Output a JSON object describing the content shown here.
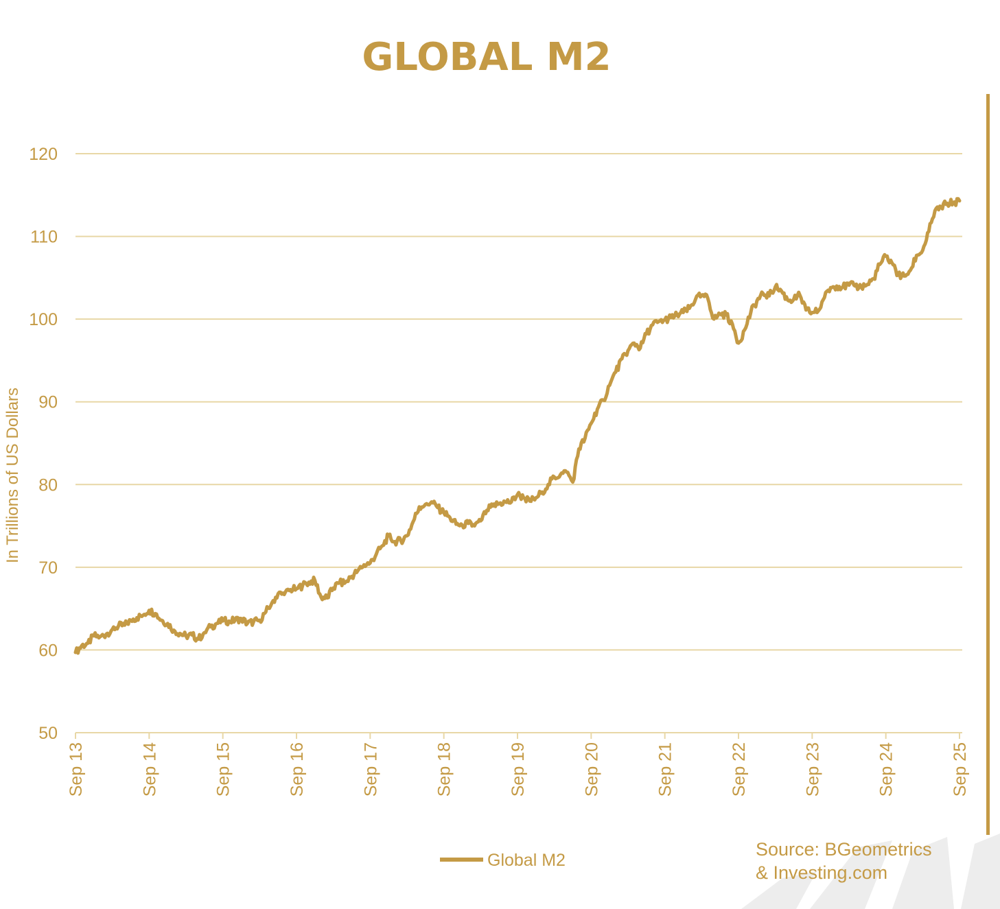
{
  "colors": {
    "accent": "#C49A45",
    "grid": "#E8D7A6",
    "text": "#C49A45",
    "watermark": "#EDEDED"
  },
  "chart_data": {
    "type": "line",
    "title": "GLOBAL M2",
    "ylabel": "In Trillions of US Dollars",
    "xlabel": "",
    "ylim": [
      50,
      120
    ],
    "yticks": [
      50,
      60,
      70,
      80,
      90,
      100,
      110,
      120
    ],
    "grid": true,
    "legend": "bottom-center",
    "xtick_labels": [
      "Sep 13",
      "Sep 14",
      "Sep 15",
      "Sep 16",
      "Sep 17",
      "Sep 18",
      "Sep 19",
      "Sep 20",
      "Sep 21",
      "Sep 22",
      "Sep 23",
      "Sep 24",
      "Sep 25"
    ],
    "series": [
      {
        "name": "Global M2",
        "x": [
          "2013-09",
          "2013-10",
          "2013-11",
          "2013-12",
          "2014-01",
          "2014-02",
          "2014-03",
          "2014-04",
          "2014-05",
          "2014-06",
          "2014-07",
          "2014-08",
          "2014-09",
          "2014-10",
          "2014-11",
          "2014-12",
          "2015-01",
          "2015-02",
          "2015-03",
          "2015-04",
          "2015-05",
          "2015-06",
          "2015-07",
          "2015-08",
          "2015-09",
          "2015-10",
          "2015-11",
          "2015-12",
          "2016-01",
          "2016-02",
          "2016-03",
          "2016-04",
          "2016-05",
          "2016-06",
          "2016-07",
          "2016-08",
          "2016-09",
          "2016-10",
          "2016-11",
          "2016-12",
          "2017-01",
          "2017-02",
          "2017-03",
          "2017-04",
          "2017-05",
          "2017-06",
          "2017-07",
          "2017-08",
          "2017-09",
          "2017-10",
          "2017-11",
          "2017-12",
          "2018-01",
          "2018-02",
          "2018-03",
          "2018-04",
          "2018-05",
          "2018-06",
          "2018-07",
          "2018-08",
          "2018-09",
          "2018-10",
          "2018-11",
          "2018-12",
          "2019-01",
          "2019-02",
          "2019-03",
          "2019-04",
          "2019-05",
          "2019-06",
          "2019-07",
          "2019-08",
          "2019-09",
          "2019-10",
          "2019-11",
          "2019-12",
          "2020-01",
          "2020-02",
          "2020-03",
          "2020-04",
          "2020-05",
          "2020-06",
          "2020-07",
          "2020-08",
          "2020-09",
          "2020-10",
          "2020-11",
          "2020-12",
          "2021-01",
          "2021-02",
          "2021-03",
          "2021-04",
          "2021-05",
          "2021-06",
          "2021-07",
          "2021-08",
          "2021-09",
          "2021-10",
          "2021-11",
          "2021-12",
          "2022-01",
          "2022-02",
          "2022-03",
          "2022-04",
          "2022-05",
          "2022-06",
          "2022-07",
          "2022-08",
          "2022-09",
          "2022-10",
          "2022-11",
          "2022-12",
          "2023-01",
          "2023-02",
          "2023-03",
          "2023-04",
          "2023-05",
          "2023-06",
          "2023-07",
          "2023-08",
          "2023-09",
          "2023-10",
          "2023-11",
          "2023-12",
          "2024-01",
          "2024-02",
          "2024-03",
          "2024-04",
          "2024-05",
          "2024-06",
          "2024-07",
          "2024-08",
          "2024-09",
          "2024-10",
          "2024-11",
          "2024-12",
          "2025-01",
          "2025-02",
          "2025-03",
          "2025-04",
          "2025-05",
          "2025-06",
          "2025-07",
          "2025-08",
          "2025-09"
        ],
        "values": [
          59.7,
          60.5,
          60.8,
          61.7,
          61.6,
          61.9,
          62.5,
          62.9,
          63.0,
          63.6,
          63.9,
          64.2,
          64.8,
          64.4,
          63.6,
          63.2,
          62.4,
          62.0,
          61.7,
          61.8,
          61.3,
          62.1,
          62.8,
          63.2,
          63.5,
          63.5,
          63.6,
          63.8,
          63.2,
          63.4,
          63.6,
          64.6,
          65.7,
          66.8,
          66.7,
          67.3,
          67.4,
          67.8,
          68.2,
          68.4,
          66.4,
          66.3,
          67.5,
          68.1,
          68.2,
          68.9,
          69.6,
          70.3,
          70.5,
          71.6,
          72.6,
          73.8,
          73.1,
          73.2,
          73.8,
          75.5,
          77.3,
          77.6,
          77.9,
          77.2,
          76.6,
          76.0,
          75.2,
          75.1,
          75.3,
          75.0,
          75.6,
          76.9,
          77.4,
          77.7,
          77.9,
          77.9,
          78.8,
          78.4,
          78.0,
          78.4,
          79.1,
          80.0,
          80.9,
          81.2,
          81.5,
          80.3,
          84.3,
          85.6,
          87.4,
          89.1,
          90.2,
          92.0,
          93.6,
          95.2,
          96.2,
          97.1,
          96.5,
          98.2,
          99.3,
          99.7,
          99.9,
          100.2,
          100.5,
          100.8,
          101.3,
          102.4,
          102.9,
          102.5,
          100.0,
          100.6,
          100.5,
          99.4,
          97.1,
          98.7,
          100.8,
          102.2,
          103.1,
          102.8,
          103.9,
          103.4,
          102.3,
          102.4,
          102.9,
          101.1,
          100.8,
          101.0,
          102.6,
          103.8,
          104.0,
          103.9,
          104.1,
          104.0,
          103.9,
          104.2,
          104.9,
          106.6,
          107.6,
          106.8,
          105.3,
          105.2,
          105.9,
          107.7,
          108.3,
          110.6,
          113.1,
          113.6,
          114.0,
          114.1,
          114.3
        ]
      }
    ],
    "annotations": [
      "Source: BGeometrics",
      "& Investing.com"
    ]
  }
}
